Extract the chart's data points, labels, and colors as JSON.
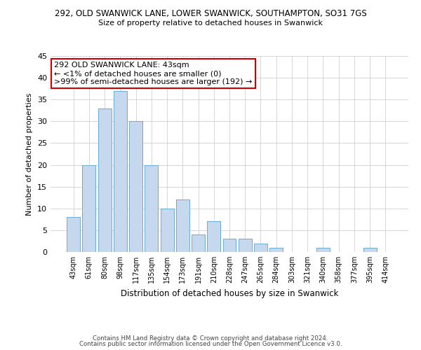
{
  "title1": "292, OLD SWANWICK LANE, LOWER SWANWICK, SOUTHAMPTON, SO31 7GS",
  "title2": "Size of property relative to detached houses in Swanwick",
  "xlabel": "Distribution of detached houses by size in Swanwick",
  "ylabel": "Number of detached properties",
  "bar_labels": [
    "43sqm",
    "61sqm",
    "80sqm",
    "98sqm",
    "117sqm",
    "135sqm",
    "154sqm",
    "173sqm",
    "191sqm",
    "210sqm",
    "228sqm",
    "247sqm",
    "265sqm",
    "284sqm",
    "303sqm",
    "321sqm",
    "340sqm",
    "358sqm",
    "377sqm",
    "395sqm",
    "414sqm"
  ],
  "bar_values": [
    8,
    20,
    33,
    37,
    30,
    20,
    10,
    12,
    4,
    7,
    3,
    3,
    2,
    1,
    0,
    0,
    1,
    0,
    0,
    1,
    0
  ],
  "bar_color": "#c5d8ed",
  "bar_edge_color": "#6aaad4",
  "ylim": [
    0,
    45
  ],
  "yticks": [
    0,
    5,
    10,
    15,
    20,
    25,
    30,
    35,
    40,
    45
  ],
  "annotation_line1": "292 OLD SWANWICK LANE: 43sqm",
  "annotation_line2": "← <1% of detached houses are smaller (0)",
  "annotation_line3": ">99% of semi-detached houses are larger (192) →",
  "annotation_box_color": "#ffffff",
  "annotation_box_edge_color": "#cc0000",
  "footer1": "Contains HM Land Registry data © Crown copyright and database right 2024.",
  "footer2": "Contains public sector information licensed under the Open Government Licence v3.0.",
  "background_color": "#ffffff",
  "grid_color": "#d0d0d0"
}
